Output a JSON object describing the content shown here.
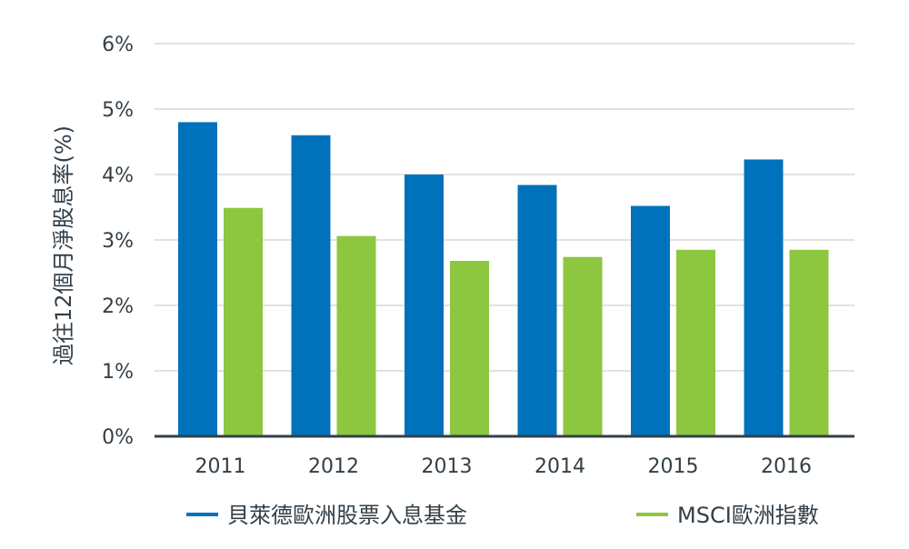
{
  "chart_data": {
    "type": "bar",
    "title": "",
    "xlabel": "",
    "ylabel": "過往12個月淨股息率(%)",
    "categories": [
      "2011",
      "2012",
      "2013",
      "2014",
      "2015",
      "2016"
    ],
    "series": [
      {
        "name": "貝萊德歐洲股票入息基金",
        "color": "#0072bc",
        "values": [
          4.8,
          4.6,
          4.0,
          3.84,
          3.52,
          4.23
        ]
      },
      {
        "name": "MSCI歐洲指數",
        "color": "#8dc63f",
        "values": [
          3.49,
          3.06,
          2.68,
          2.74,
          2.85,
          2.85
        ]
      }
    ],
    "ylim": [
      0,
      6
    ],
    "yticks": [
      0,
      1,
      2,
      3,
      4,
      5,
      6
    ],
    "ytick_suffix": "%",
    "grid": true,
    "legend_position": "bottom"
  },
  "colors": {
    "grid": "#d9d9d9",
    "axis": "#333f48",
    "text": "#333f48"
  }
}
